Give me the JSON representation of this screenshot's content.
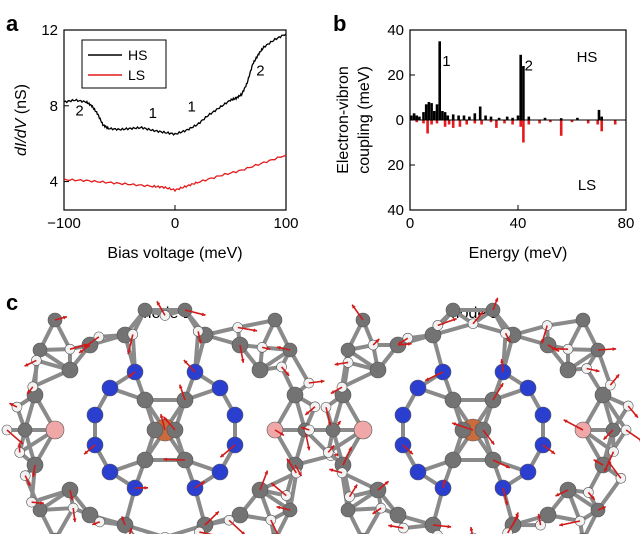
{
  "panels": {
    "a": "a",
    "b": "b",
    "c": "c"
  },
  "chart_data": [
    {
      "type": "line",
      "xlabel": "Bias voltage (meV)",
      "ylabel_parts": [
        "d",
        "I",
        "/d",
        "V",
        " (nS)"
      ],
      "xlim": [
        -100,
        100
      ],
      "ylim": [
        2.5,
        12
      ],
      "xticks": [
        -100,
        0,
        100
      ],
      "xtick_labels": [
        "−100",
        "0",
        "100"
      ],
      "yticks": [
        4,
        8,
        12
      ],
      "ytick_labels": [
        "4",
        "8",
        "12"
      ],
      "legend": "top-left",
      "series": [
        {
          "name": "HS",
          "color": "#000000",
          "x": [
            -100,
            -90,
            -80,
            -75,
            -70,
            -65,
            -60,
            -50,
            -40,
            -30,
            -20,
            -10,
            0,
            10,
            20,
            30,
            40,
            50,
            55,
            60,
            65,
            70,
            75,
            80,
            90,
            100
          ],
          "y": [
            8.2,
            8.3,
            8.2,
            8.0,
            7.6,
            7.0,
            6.8,
            6.75,
            6.8,
            6.85,
            6.7,
            6.6,
            6.5,
            6.7,
            7.0,
            7.5,
            7.9,
            8.3,
            8.4,
            8.6,
            9.2,
            10.2,
            10.7,
            11.1,
            11.5,
            11.8
          ]
        },
        {
          "name": "LS",
          "color": "#e41a1c",
          "x": [
            -100,
            -80,
            -60,
            -40,
            -20,
            -10,
            0,
            10,
            20,
            40,
            60,
            80,
            100
          ],
          "y": [
            4.1,
            4.05,
            3.95,
            3.85,
            3.75,
            3.7,
            3.55,
            3.75,
            3.95,
            4.3,
            4.6,
            5.0,
            5.4
          ]
        }
      ],
      "annotations": [
        {
          "text": "2",
          "x": -86,
          "y": 7.5
        },
        {
          "text": "1",
          "x": -20,
          "y": 7.35
        },
        {
          "text": "1",
          "x": 15,
          "y": 7.7
        },
        {
          "text": "2",
          "x": 77,
          "y": 9.6
        }
      ]
    },
    {
      "type": "bar",
      "xlabel": "Energy (meV)",
      "ylabel_lines": [
        "Electron-vibron",
        "coupling (meV)"
      ],
      "xlim": [
        0,
        80
      ],
      "ylim_display": [
        -40,
        40
      ],
      "xticks": [
        0,
        40,
        80
      ],
      "yticks": [
        -40,
        -20,
        0,
        20,
        40
      ],
      "ytick_labels": [
        "40",
        "20",
        "0",
        "20",
        "40"
      ],
      "series_labels": {
        "top": "HS",
        "bottom": "LS"
      },
      "series": [
        {
          "name": "HS",
          "color": "#000000",
          "x": [
            0.5,
            1.5,
            2.5,
            3.5,
            5.0,
            6.0,
            7.0,
            8.0,
            9.0,
            10.0,
            11.0,
            12.0,
            13.0,
            14.0,
            16.0,
            18.0,
            20.0,
            22.0,
            24.0,
            26.0,
            28.0,
            30.0,
            33.0,
            36.0,
            38.0,
            40.0,
            41.0,
            42.0,
            44.0,
            50.0,
            56.0,
            62.0,
            70.0,
            71.0
          ],
          "values": [
            2.0,
            3.0,
            2.0,
            1.5,
            3.5,
            7.0,
            8.0,
            7.5,
            4.0,
            7.0,
            35.0,
            4.0,
            3.5,
            2.0,
            2.5,
            2.0,
            2.0,
            1.5,
            3.0,
            6.0,
            2.0,
            1.5,
            1.0,
            1.5,
            1.0,
            2.0,
            29.0,
            24.0,
            1.5,
            1.0,
            0.8,
            1.0,
            4.5,
            1.5
          ]
        },
        {
          "name": "LS",
          "color": "#e41a1c",
          "x": [
            2.5,
            5.0,
            6.5,
            8.0,
            10.0,
            13.0,
            14.5,
            16.0,
            18.5,
            21.0,
            24.0,
            26.5,
            30.0,
            32.0,
            35.0,
            38.0,
            41.0,
            42.0,
            44.0,
            48.0,
            52.0,
            56.0,
            60.0,
            66.0,
            69.5,
            71.0,
            76.0
          ],
          "values": [
            1.0,
            1.5,
            6.0,
            2.0,
            1.5,
            3.0,
            2.0,
            3.5,
            3.0,
            2.0,
            1.5,
            2.0,
            1.0,
            3.5,
            1.5,
            2.0,
            3.0,
            10.0,
            2.0,
            1.5,
            1.0,
            7.0,
            1.0,
            1.5,
            2.0,
            5.0,
            2.0
          ]
        }
      ],
      "annotations": [
        {
          "text": "1",
          "x": 13.5,
          "y": 24
        },
        {
          "text": "2",
          "x": 44,
          "y": 22
        }
      ]
    }
  ],
  "panel_c": {
    "modes": [
      {
        "title": "Mode 1"
      },
      {
        "title": "Mode 2"
      }
    ],
    "colors": {
      "carbon": "#737373",
      "nitrogen": "#2a3fd0",
      "hydrogen": "#f2f2f2",
      "boron": "#f0a7a7",
      "iron": "#c96b3c",
      "arrow": "#d11a1a",
      "bond": "#8a8a8a"
    }
  }
}
